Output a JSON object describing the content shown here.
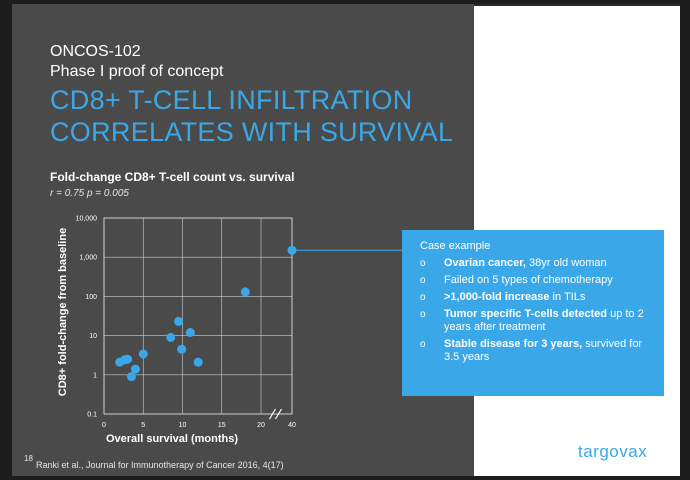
{
  "slide": {
    "program": "ONCOS-102",
    "phase": "Phase I proof of concept",
    "title_line1": "CD8+ T-CELL INFILTRATION",
    "title_line2": "CORRELATES WITH SURVIVAL",
    "page_number": "18",
    "citation": "Ranki et al., Journal for Immunotherapy of Cancer 2016, 4(17)",
    "logo_text": "targovax",
    "colors": {
      "background": "#4a4a4a",
      "accent": "#3aa8e8",
      "logo_dots": "#f07c20"
    }
  },
  "callout": {
    "title": "Case example",
    "items": [
      {
        "bold": "Ovarian cancer,",
        "text": " 38yr old woman"
      },
      {
        "bold": "",
        "text": "Failed on 5 types of chemotherapy"
      },
      {
        "bold": ">1,000-fold increase",
        "text": " in TILs"
      },
      {
        "bold": "Tumor specific T-cells detected",
        "text": " up to 2 years after treatment"
      },
      {
        "bold": "Stable disease for 3 years,",
        "text": " survived for 3.5 years"
      }
    ]
  },
  "chart_data": {
    "type": "scatter",
    "title": "Fold-change CD8+ T-cell count vs. survival",
    "annotation": "r = 0.75   p = 0.005",
    "xlabel": "Overall survival (months)",
    "ylabel": "CD8+ fold-change from baseline",
    "x_ticks": [
      "0",
      "5",
      "10",
      "15",
      "20",
      "40"
    ],
    "y_ticks": [
      "0.1",
      "1",
      "10",
      "100",
      "1,000",
      "10,000"
    ],
    "y_scale": "log",
    "x_axis_break": "between 20 and 40",
    "xlim": [
      0,
      40
    ],
    "ylim": [
      0.1,
      10000
    ],
    "grid": true,
    "marker_color": "#3aa8e8",
    "points": [
      {
        "x": 2.0,
        "y": 2.1
      },
      {
        "x": 2.6,
        "y": 2.4
      },
      {
        "x": 3.0,
        "y": 2.5
      },
      {
        "x": 3.5,
        "y": 0.9
      },
      {
        "x": 4.0,
        "y": 1.4
      },
      {
        "x": 5.0,
        "y": 3.4
      },
      {
        "x": 8.5,
        "y": 9.0
      },
      {
        "x": 9.5,
        "y": 23
      },
      {
        "x": 9.9,
        "y": 4.5
      },
      {
        "x": 11.0,
        "y": 12
      },
      {
        "x": 12.0,
        "y": 2.1
      },
      {
        "x": 18.0,
        "y": 130
      },
      {
        "x": 40.0,
        "y": 1500
      }
    ]
  }
}
